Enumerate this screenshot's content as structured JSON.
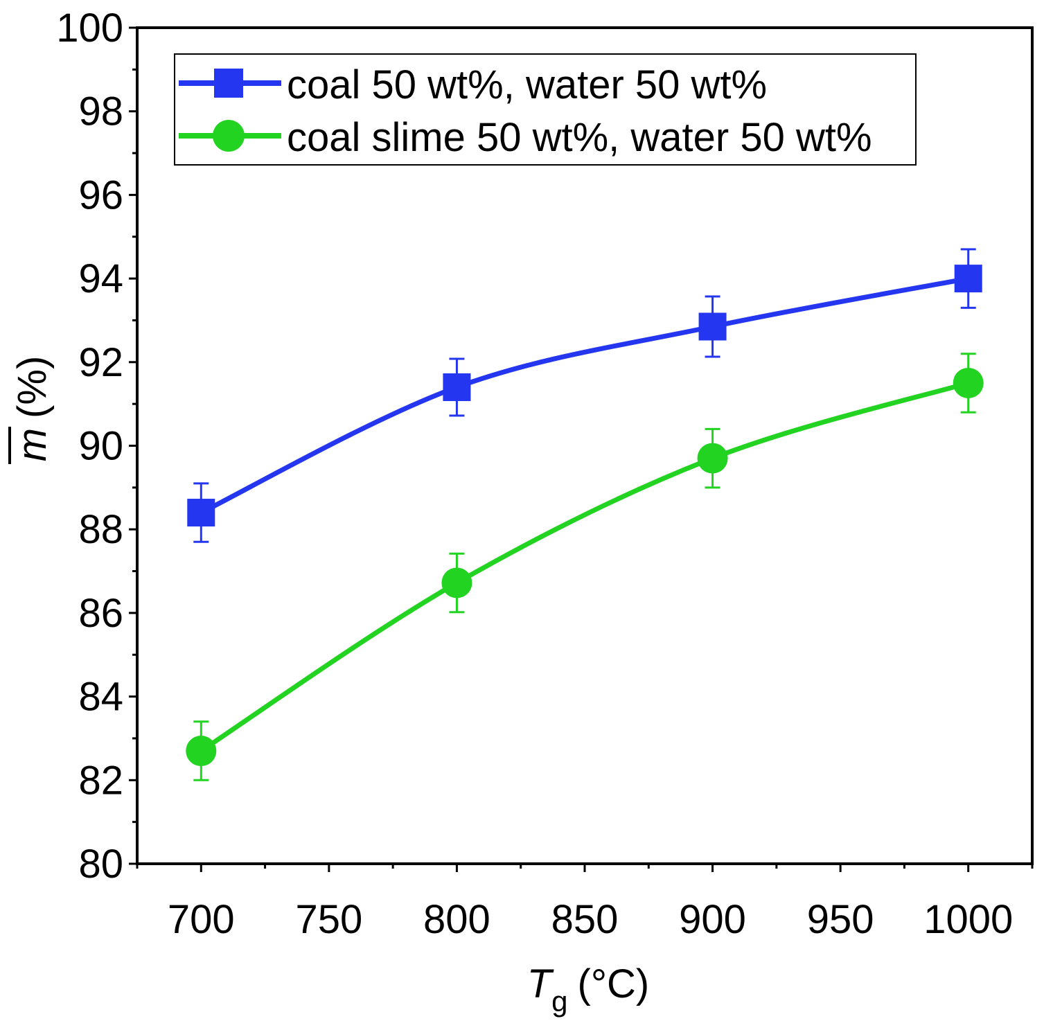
{
  "chart_data": {
    "type": "line",
    "xlabel_main": "T",
    "xlabel_sub": "g",
    "xlabel_unit": "(°C)",
    "ylabel_symbol": "m",
    "ylabel_unit": "(%)",
    "xlim": [
      675,
      1025
    ],
    "ylim": [
      80,
      100
    ],
    "xticks": [
      700,
      750,
      800,
      850,
      900,
      950,
      1000
    ],
    "yticks": [
      80,
      82,
      84,
      86,
      88,
      90,
      92,
      94,
      96,
      98,
      100
    ],
    "legend_position": "top-left",
    "series": [
      {
        "name": "coal 50 wt%, water 50 wt%",
        "color": "#2436f0",
        "marker": "square",
        "x": [
          700,
          800,
          900,
          1000
        ],
        "y": [
          88.4,
          91.4,
          92.85,
          94.0
        ],
        "error": [
          0.7,
          0.68,
          0.72,
          0.7
        ]
      },
      {
        "name": "coal slime 50 wt%, water 50 wt%",
        "color": "#22d322",
        "marker": "circle",
        "x": [
          700,
          800,
          900,
          1000
        ],
        "y": [
          82.7,
          86.72,
          89.7,
          91.5
        ],
        "error": [
          0.7,
          0.7,
          0.7,
          0.7
        ]
      }
    ]
  }
}
